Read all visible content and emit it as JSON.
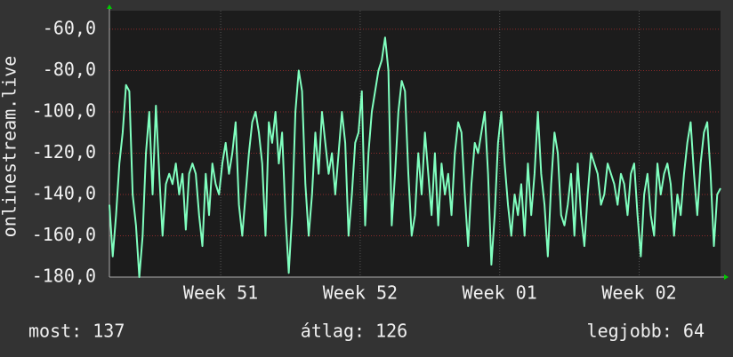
{
  "chart_data": {
    "type": "line",
    "y_label": "onlinestream.live",
    "x": [
      0,
      4,
      8,
      12,
      16,
      20,
      24,
      28,
      32,
      36,
      40,
      44,
      48,
      52,
      56,
      60,
      64,
      68,
      72,
      76,
      80,
      84,
      88,
      92,
      96,
      100,
      104,
      108,
      112,
      116,
      120,
      124,
      128,
      132,
      136,
      140,
      144,
      148,
      152,
      156,
      160,
      164,
      168,
      172,
      176,
      180,
      184,
      188,
      192,
      196,
      200,
      204,
      208,
      212,
      216,
      220,
      224,
      228,
      232,
      236,
      240,
      244,
      248,
      252,
      256,
      260,
      264,
      268,
      272,
      276,
      280,
      284,
      288,
      292,
      296,
      300,
      304,
      308,
      312,
      316,
      320,
      324,
      328,
      332,
      336,
      340,
      344,
      348,
      352,
      356,
      360,
      364,
      368,
      372,
      376,
      380,
      384,
      388,
      392,
      396,
      400,
      404,
      408,
      412,
      416,
      420,
      424,
      428,
      432,
      436,
      440,
      444,
      448,
      452,
      456,
      460,
      464,
      468,
      472,
      476,
      480,
      484,
      488,
      492,
      496,
      500,
      504,
      508,
      512,
      516,
      520,
      524,
      528,
      532,
      536,
      540,
      544,
      548,
      552,
      556,
      560,
      564,
      568,
      572,
      576,
      580,
      584,
      588,
      592,
      596,
      600,
      604,
      608,
      612,
      616,
      620,
      624,
      628,
      632,
      636,
      640,
      644,
      648,
      652,
      656,
      660,
      664,
      668,
      672,
      676,
      680,
      684,
      688,
      692,
      696,
      700,
      704,
      708,
      712,
      716,
      720,
      724,
      728,
      732,
      736
    ],
    "series": [
      {
        "color": "#80ffbf",
        "values": [
          -145,
          -170,
          -150,
          -125,
          -110,
          -87,
          -90,
          -140,
          -155,
          -180,
          -160,
          -120,
          -100,
          -140,
          -97,
          -130,
          -160,
          -135,
          -130,
          -135,
          -125,
          -140,
          -130,
          -157,
          -130,
          -125,
          -130,
          -150,
          -165,
          -130,
          -150,
          -125,
          -135,
          -140,
          -125,
          -115,
          -130,
          -120,
          -105,
          -145,
          -160,
          -140,
          -120,
          -105,
          -100,
          -110,
          -125,
          -160,
          -105,
          -115,
          -100,
          -125,
          -110,
          -150,
          -178,
          -150,
          -100,
          -80,
          -90,
          -135,
          -160,
          -140,
          -110,
          -130,
          -100,
          -115,
          -130,
          -120,
          -140,
          -120,
          -100,
          -115,
          -160,
          -140,
          -115,
          -110,
          -90,
          -155,
          -120,
          -100,
          -90,
          -80,
          -75,
          -64,
          -80,
          -155,
          -130,
          -100,
          -85,
          -90,
          -130,
          -160,
          -150,
          -120,
          -140,
          -110,
          -130,
          -150,
          -120,
          -155,
          -125,
          -140,
          -130,
          -150,
          -120,
          -105,
          -110,
          -140,
          -165,
          -135,
          -115,
          -120,
          -110,
          -100,
          -130,
          -174,
          -150,
          -115,
          -100,
          -125,
          -145,
          -160,
          -140,
          -150,
          -135,
          -160,
          -125,
          -150,
          -130,
          -100,
          -130,
          -145,
          -170,
          -135,
          -110,
          -120,
          -150,
          -155,
          -145,
          -130,
          -160,
          -125,
          -150,
          -165,
          -140,
          -120,
          -125,
          -130,
          -145,
          -140,
          -125,
          -130,
          -135,
          -145,
          -130,
          -135,
          -150,
          -130,
          -125,
          -150,
          -170,
          -140,
          -130,
          -150,
          -160,
          -125,
          -140,
          -130,
          -125,
          -135,
          -160,
          -140,
          -150,
          -130,
          -115,
          -105,
          -130,
          -150,
          -125,
          -110,
          -105,
          -130,
          -165,
          -140,
          -137
        ]
      }
    ],
    "xlim": [
      0,
      736
    ],
    "xticks": [
      {
        "value": 134,
        "label": "Week 51"
      },
      {
        "value": 302,
        "label": "Week 52"
      },
      {
        "value": 470,
        "label": "Week 01"
      },
      {
        "value": 638,
        "label": "Week 02"
      }
    ],
    "ylim": [
      -180,
      -51
    ],
    "yticks": [
      {
        "value": -180,
        "label": "-180,0"
      },
      {
        "value": -160,
        "label": "-160,0"
      },
      {
        "value": -140,
        "label": "-140,0"
      },
      {
        "value": -120,
        "label": "-120,0"
      },
      {
        "value": -100,
        "label": "-100,0"
      },
      {
        "value": -80,
        "label": "-80,0"
      },
      {
        "value": -60,
        "label": "-60,0"
      }
    ],
    "grid": true,
    "footer": [
      "most: 137",
      "átlag: 126",
      "legjobb: 64"
    ]
  }
}
